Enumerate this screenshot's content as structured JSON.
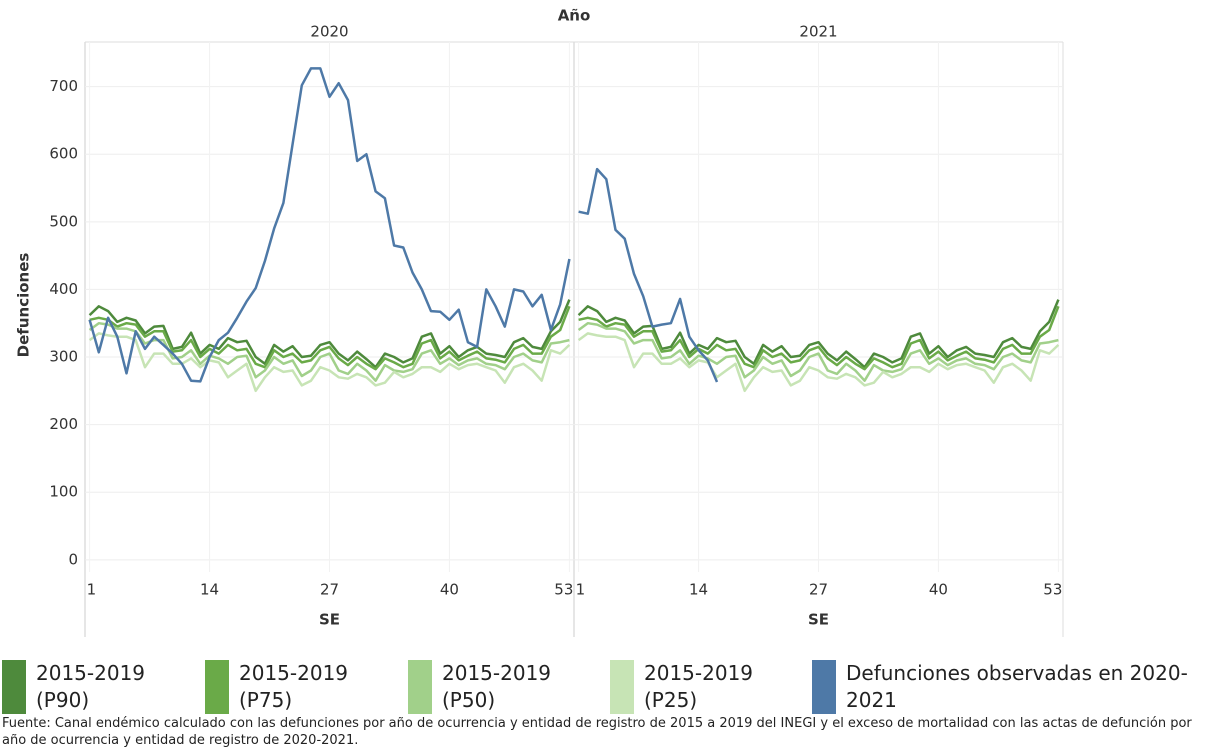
{
  "chart_data": {
    "type": "line",
    "panel_title": "Año",
    "panels": [
      "2020",
      "2021"
    ],
    "xlabel": "SE",
    "ylabel": "Defunciones",
    "x": [
      1,
      2,
      3,
      4,
      5,
      6,
      7,
      8,
      9,
      10,
      11,
      12,
      13,
      14,
      15,
      16,
      17,
      18,
      19,
      20,
      21,
      22,
      23,
      24,
      25,
      26,
      27,
      28,
      29,
      30,
      31,
      32,
      33,
      34,
      35,
      36,
      37,
      38,
      39,
      40,
      41,
      42,
      43,
      44,
      45,
      46,
      47,
      48,
      49,
      50,
      51,
      52,
      53
    ],
    "xlim": [
      0.5,
      53.5
    ],
    "xticks": [
      1,
      14,
      27,
      40,
      53
    ],
    "ylim": [
      -18,
      766
    ],
    "yticks": [
      0,
      100,
      200,
      300,
      400,
      500,
      600,
      700
    ],
    "grid": true,
    "series": [
      {
        "name": "2015-2019 (P90)",
        "color": "#4e8a3c",
        "values": [
          362,
          375,
          368,
          352,
          358,
          354,
          335,
          345,
          346,
          312,
          315,
          336,
          305,
          318,
          312,
          328,
          322,
          324,
          300,
          290,
          318,
          308,
          316,
          300,
          302,
          318,
          322,
          305,
          295,
          308,
          297,
          285,
          305,
          300,
          292,
          298,
          330,
          335,
          305,
          316,
          300,
          310,
          315,
          305,
          303,
          300,
          322,
          328,
          315,
          312,
          338,
          352,
          385
        ]
      },
      {
        "name": "2015-2019 (P75)",
        "color": "#6aaa48",
        "values": [
          355,
          358,
          355,
          345,
          350,
          348,
          330,
          338,
          338,
          308,
          310,
          325,
          300,
          312,
          305,
          318,
          310,
          312,
          290,
          285,
          310,
          300,
          305,
          292,
          295,
          310,
          315,
          298,
          288,
          300,
          290,
          282,
          298,
          292,
          285,
          290,
          320,
          325,
          298,
          308,
          295,
          302,
          308,
          298,
          296,
          292,
          312,
          318,
          305,
          305,
          330,
          340,
          375
        ]
      },
      {
        "name": "2015-2019 (P50)",
        "color": "#a1d08a",
        "values": [
          340,
          350,
          348,
          342,
          342,
          338,
          320,
          325,
          325,
          298,
          300,
          310,
          290,
          302,
          298,
          290,
          300,
          302,
          270,
          280,
          300,
          290,
          295,
          272,
          280,
          300,
          305,
          280,
          275,
          290,
          280,
          265,
          288,
          280,
          278,
          282,
          305,
          310,
          290,
          298,
          288,
          295,
          298,
          290,
          288,
          282,
          300,
          305,
          295,
          292,
          320,
          322,
          325
        ]
      },
      {
        "name": "2015-2019 (P25)",
        "color": "#c7e4b5",
        "values": [
          325,
          335,
          332,
          330,
          330,
          325,
          285,
          305,
          305,
          290,
          290,
          298,
          285,
          295,
          292,
          270,
          280,
          290,
          250,
          270,
          285,
          278,
          280,
          258,
          265,
          285,
          280,
          270,
          268,
          275,
          270,
          258,
          262,
          278,
          270,
          275,
          285,
          285,
          278,
          290,
          282,
          288,
          290,
          285,
          280,
          262,
          285,
          290,
          280,
          265,
          310,
          305,
          318
        ]
      },
      {
        "name": "Defunciones observadas en 2020-2021",
        "color": "#4e79a7",
        "values": [
          [
            355,
            307,
            358,
            330,
            276,
            338,
            312,
            330,
            318,
            305,
            290,
            265,
            264,
            300,
            325,
            336,
            358,
            382,
            402,
            442,
            490,
            528,
            615,
            702,
            727,
            727,
            685,
            705,
            680,
            590,
            600,
            545,
            535,
            465,
            462,
            425,
            400,
            368,
            367,
            355,
            370,
            322,
            315,
            400,
            375,
            345,
            400,
            397,
            375,
            392,
            340,
            378,
            445
          ],
          [
            515,
            512,
            578,
            563,
            488,
            475,
            423,
            390,
            345,
            348,
            350,
            386,
            330,
            310,
            295,
            263,
            null,
            null,
            null,
            null,
            null,
            null,
            null,
            null,
            null,
            null,
            null,
            null,
            null,
            null,
            null,
            null,
            null,
            null,
            null,
            null,
            null,
            null,
            null,
            null,
            null,
            null,
            null,
            null,
            null,
            null,
            null,
            null,
            null,
            null,
            null,
            null,
            null
          ]
        ]
      }
    ],
    "source": "Fuente: Canal endémico calculado con las defunciones por año de ocurrencia y entidad de registro de 2015 a 2019 del INEGI y el exceso de mortalidad con las actas de defunción por año de ocurrencia y entidad de registro de 2020-2021."
  }
}
